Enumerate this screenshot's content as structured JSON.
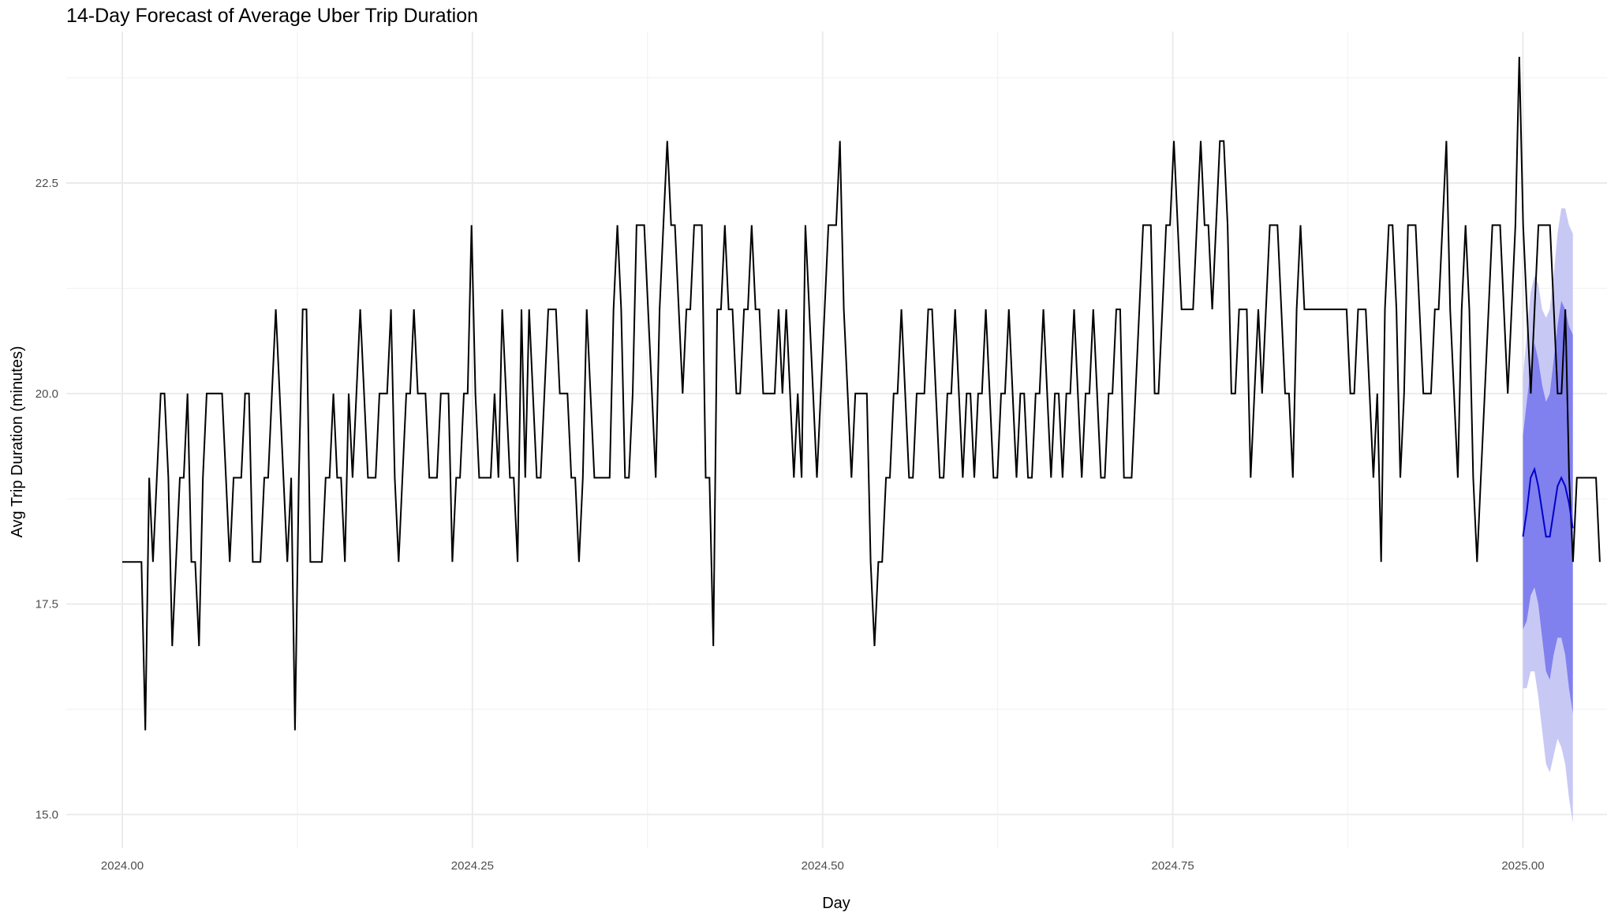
{
  "chart_data": {
    "type": "line",
    "title": "14-Day Forecast of Average Uber Trip Duration",
    "xlabel": "Day",
    "ylabel": "Avg Trip Duration (minutes)",
    "xlim": [
      2023.96,
      2025.06
    ],
    "ylim": [
      14.6,
      24.3
    ],
    "x_ticks": [
      {
        "value": 2024.0,
        "label": "2024.00"
      },
      {
        "value": 2024.25,
        "label": "2024.25"
      },
      {
        "value": 2024.5,
        "label": "2024.50"
      },
      {
        "value": 2024.75,
        "label": "2024.75"
      },
      {
        "value": 2025.0,
        "label": "2025.00"
      }
    ],
    "y_ticks": [
      {
        "value": 15.0,
        "label": "15.0"
      },
      {
        "value": 17.5,
        "label": "17.5"
      },
      {
        "value": 20.0,
        "label": "20.0"
      },
      {
        "value": 22.5,
        "label": "22.5"
      }
    ],
    "grid": true,
    "history": {
      "x_start": 2024.0,
      "x_step": 0.00274,
      "color": "#000000",
      "values": [
        18,
        18,
        18,
        18,
        18,
        18,
        16,
        19,
        18,
        19,
        20,
        20,
        19,
        17,
        18,
        19,
        19,
        20,
        18,
        18,
        17,
        19,
        20,
        20,
        20,
        20,
        20,
        19,
        18,
        19,
        19,
        19,
        20,
        20,
        18,
        18,
        18,
        19,
        19,
        20,
        21,
        20,
        19,
        18,
        19,
        16,
        19,
        21,
        21,
        18,
        18,
        18,
        18,
        19,
        19,
        20,
        19,
        19,
        18,
        20,
        19,
        20,
        21,
        20,
        19,
        19,
        19,
        20,
        20,
        20,
        21,
        19,
        18,
        19,
        20,
        20,
        21,
        20,
        20,
        20,
        19,
        19,
        19,
        20,
        20,
        20,
        18,
        19,
        19,
        20,
        20,
        22,
        20,
        19,
        19,
        19,
        19,
        20,
        19,
        21,
        20,
        19,
        19,
        18,
        21,
        19,
        21,
        20,
        19,
        19,
        20,
        21,
        21,
        21,
        20,
        20,
        20,
        19,
        19,
        18,
        19,
        21,
        20,
        19,
        19,
        19,
        19,
        19,
        21,
        22,
        21,
        19,
        19,
        20,
        22,
        22,
        22,
        21,
        20,
        19,
        21,
        22,
        23,
        22,
        22,
        21,
        20,
        21,
        21,
        22,
        22,
        22,
        19,
        19,
        17,
        21,
        21,
        22,
        21,
        21,
        20,
        20,
        21,
        21,
        22,
        21,
        21,
        20,
        20,
        20,
        20,
        21,
        20,
        21,
        20,
        19,
        20,
        19,
        22,
        21,
        20,
        19,
        20,
        21,
        22,
        22,
        22,
        23,
        21,
        20,
        19,
        20,
        20,
        20,
        20,
        18,
        17,
        18,
        18,
        19,
        19,
        20,
        20,
        21,
        20,
        19,
        19,
        20,
        20,
        20,
        21,
        21,
        20,
        19,
        19,
        20,
        20,
        21,
        20,
        19,
        20,
        20,
        19,
        20,
        20,
        21,
        20,
        19,
        19,
        20,
        20,
        21,
        20,
        19,
        20,
        20,
        19,
        19,
        20,
        20,
        21,
        20,
        19,
        20,
        20,
        19,
        20,
        20,
        21,
        20,
        19,
        20,
        20,
        21,
        20,
        19,
        19,
        20,
        20,
        21,
        21,
        19,
        19,
        19,
        20,
        21,
        22,
        22,
        22,
        20,
        20,
        21,
        22,
        22,
        23,
        22,
        21,
        21,
        21,
        21,
        22,
        23,
        22,
        22,
        21,
        22,
        23,
        23,
        22,
        20,
        20,
        21,
        21,
        21,
        19,
        20,
        21,
        20,
        21,
        22,
        22,
        22,
        21,
        20,
        20,
        19,
        21,
        22,
        21,
        21,
        21,
        21,
        21,
        21,
        21,
        21,
        21,
        21,
        21,
        21,
        20,
        20,
        21,
        21,
        21,
        20,
        19,
        20,
        18,
        21,
        22,
        22,
        21,
        19,
        20,
        22,
        22,
        22,
        21,
        20,
        20,
        20,
        21,
        21,
        22,
        23,
        21,
        20,
        19,
        21,
        22,
        21,
        19,
        18,
        19,
        20,
        21,
        22,
        22,
        22,
        21,
        20,
        21,
        22,
        24,
        22,
        21,
        20,
        21,
        22,
        22,
        22,
        22,
        21,
        20,
        20,
        21,
        19,
        18,
        19,
        19,
        19,
        19,
        19,
        19,
        18
      ]
    },
    "forecast": {
      "x_start": 2025.0,
      "x_step": 0.00274,
      "mean_color": "#0000cc",
      "band80_color": "#8080ee",
      "band95_color": "#c8c8f4",
      "mean": [
        18.3,
        18.6,
        19.0,
        19.1,
        18.9,
        18.6,
        18.3,
        18.3,
        18.6,
        18.9,
        19.0,
        18.9,
        18.7,
        18.4
      ],
      "lo80": [
        17.2,
        17.3,
        17.6,
        17.7,
        17.5,
        17.1,
        16.7,
        16.6,
        16.9,
        17.1,
        17.1,
        16.9,
        16.5,
        16.2
      ],
      "hi80": [
        19.5,
        19.9,
        20.3,
        20.6,
        20.4,
        20.1,
        19.9,
        20.0,
        20.4,
        20.8,
        21.1,
        21.0,
        20.8,
        20.7
      ],
      "lo95": [
        16.5,
        16.5,
        16.7,
        16.7,
        16.4,
        16.0,
        15.6,
        15.5,
        15.7,
        15.9,
        15.8,
        15.6,
        15.2,
        14.9
      ],
      "hi95": [
        20.2,
        20.7,
        21.2,
        21.4,
        21.3,
        21.0,
        20.9,
        21.0,
        21.4,
        21.9,
        22.2,
        22.2,
        22.0,
        21.9
      ]
    }
  }
}
